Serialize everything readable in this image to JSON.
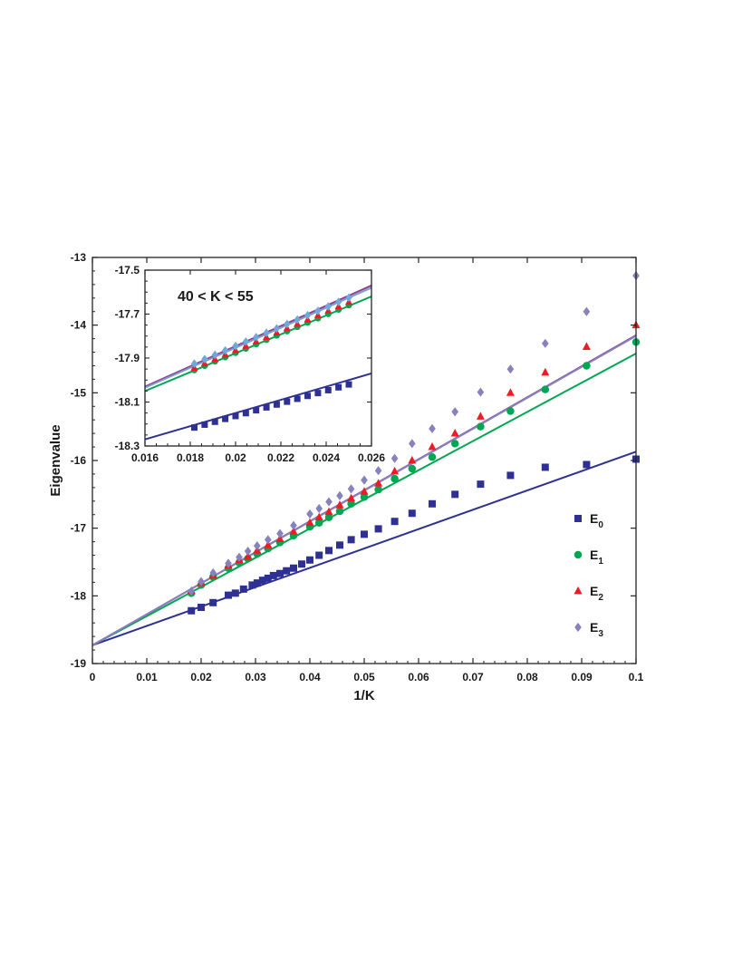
{
  "chart_data": [
    {
      "type": "scatter",
      "title": "",
      "xlabel": "1/K",
      "ylabel": "Eigenvalue",
      "xlim": [
        0,
        0.1
      ],
      "ylim": [
        -19,
        -13
      ],
      "xticks": [
        0,
        0.01,
        0.02,
        0.03,
        0.04,
        0.05,
        0.06,
        0.07,
        0.08,
        0.09,
        0.1
      ],
      "xtick_labels": [
        "0",
        "0.01",
        "0.02",
        "0.03",
        "0.04",
        "0.05",
        "0.06",
        "0.07",
        "0.08",
        "0.09",
        "0.1"
      ],
      "yticks": [
        -19,
        -18,
        -17,
        -16,
        -15,
        -14,
        -13
      ],
      "ytick_labels": [
        "-19",
        "-18",
        "-17",
        "-16",
        "-15",
        "-14",
        "-13"
      ],
      "grid": false,
      "legend_position": "bottom-right",
      "series": [
        {
          "name": "E",
          "sub": "0",
          "color": "#2e3192",
          "marker": "square",
          "x": [
            0.0182,
            0.02,
            0.0222,
            0.025,
            0.0263,
            0.0278,
            0.0294,
            0.0303,
            0.0313,
            0.0323,
            0.0333,
            0.0345,
            0.0357,
            0.037,
            0.0385,
            0.04,
            0.0417,
            0.0435,
            0.0455,
            0.0476,
            0.05,
            0.0526,
            0.0556,
            0.0588,
            0.0625,
            0.0667,
            0.0714,
            0.0769,
            0.0833,
            0.0909,
            0.1
          ],
          "y": [
            -18.22,
            -18.17,
            -18.1,
            -17.99,
            -17.96,
            -17.9,
            -17.84,
            -17.81,
            -17.77,
            -17.74,
            -17.7,
            -17.67,
            -17.63,
            -17.59,
            -17.53,
            -17.47,
            -17.4,
            -17.33,
            -17.25,
            -17.17,
            -17.09,
            -17.01,
            -16.9,
            -16.78,
            -16.64,
            -16.5,
            -16.35,
            -16.22,
            -16.1,
            -16.06,
            -15.98
          ]
        },
        {
          "name": "E",
          "sub": "1",
          "color": "#00a651",
          "marker": "circle",
          "x": [
            0.0182,
            0.02,
            0.0222,
            0.025,
            0.027,
            0.0286,
            0.0303,
            0.0323,
            0.0345,
            0.037,
            0.04,
            0.0417,
            0.0435,
            0.0455,
            0.0476,
            0.05,
            0.0526,
            0.0556,
            0.0588,
            0.0625,
            0.0667,
            0.0714,
            0.0769,
            0.0833,
            0.0909,
            0.1
          ],
          "y": [
            -17.96,
            -17.84,
            -17.72,
            -17.59,
            -17.51,
            -17.45,
            -17.38,
            -17.3,
            -17.21,
            -17.11,
            -16.98,
            -16.92,
            -16.84,
            -16.75,
            -16.64,
            -16.54,
            -16.43,
            -16.27,
            -16.12,
            -15.95,
            -15.75,
            -15.5,
            -15.27,
            -14.95,
            -14.6,
            -14.25
          ]
        },
        {
          "name": "E",
          "sub": "2",
          "color": "#ed1c24",
          "marker": "triangle",
          "x": [
            0.0182,
            0.02,
            0.0222,
            0.025,
            0.027,
            0.0286,
            0.0303,
            0.0323,
            0.0345,
            0.037,
            0.04,
            0.0417,
            0.0435,
            0.0455,
            0.0476,
            0.05,
            0.0526,
            0.0556,
            0.0588,
            0.0625,
            0.0667,
            0.0714,
            0.0769,
            0.0833,
            0.0909,
            0.1
          ],
          "y": [
            -17.93,
            -17.81,
            -17.7,
            -17.55,
            -17.47,
            -17.42,
            -17.33,
            -17.25,
            -17.16,
            -17.05,
            -16.92,
            -16.84,
            -16.76,
            -16.66,
            -16.56,
            -16.46,
            -16.34,
            -16.16,
            -16.0,
            -15.8,
            -15.6,
            -15.35,
            -15.0,
            -14.7,
            -14.32,
            -14.0
          ]
        },
        {
          "name": "E",
          "sub": "3",
          "color": "#8781bd",
          "marker": "diamond",
          "x": [
            0.0182,
            0.02,
            0.0222,
            0.025,
            0.027,
            0.0286,
            0.0303,
            0.0323,
            0.0345,
            0.037,
            0.04,
            0.0417,
            0.0435,
            0.0455,
            0.0476,
            0.05,
            0.0526,
            0.0556,
            0.0588,
            0.0625,
            0.0667,
            0.0714,
            0.0769,
            0.0833,
            0.0909,
            0.1
          ],
          "y": [
            -17.93,
            -17.79,
            -17.66,
            -17.52,
            -17.43,
            -17.34,
            -17.26,
            -17.17,
            -17.08,
            -16.96,
            -16.79,
            -16.71,
            -16.61,
            -16.52,
            -16.42,
            -16.29,
            -16.15,
            -15.97,
            -15.75,
            -15.53,
            -15.28,
            -14.99,
            -14.65,
            -14.27,
            -13.8,
            -13.27
          ]
        }
      ],
      "fit_lines": [
        {
          "color": "#2e3192",
          "x": [
            0,
            0.1
          ],
          "y": [
            -18.73,
            -15.87
          ]
        },
        {
          "color": "#00a651",
          "x": [
            0,
            0.1
          ],
          "y": [
            -18.73,
            -14.42
          ]
        },
        {
          "color": "#8e3f8e",
          "x": [
            0,
            0.1
          ],
          "y": [
            -18.73,
            -14.15
          ]
        },
        {
          "color": "#8781bd",
          "x": [
            0,
            0.1
          ],
          "y": [
            -18.73,
            -14.16
          ]
        }
      ]
    },
    {
      "type": "scatter",
      "title": "40 < K < 55",
      "xlim": [
        0.016,
        0.026
      ],
      "ylim": [
        -18.3,
        -17.5
      ],
      "xticks": [
        0.016,
        0.018,
        0.02,
        0.022,
        0.024,
        0.026
      ],
      "xtick_labels": [
        "0.016",
        "0.018",
        "0.02",
        "0.022",
        "0.024",
        "0.026"
      ],
      "yticks": [
        -18.3,
        -18.1,
        -17.9,
        -17.7,
        -17.5
      ],
      "ytick_labels": [
        "-18.3",
        "-18.1",
        "-17.9",
        "-17.7",
        "-17.5"
      ],
      "series": [
        {
          "color": "#2e3192",
          "marker": "square",
          "x_start": 0.01818,
          "x_end": 0.025,
          "count": 16,
          "y_start": -18.216,
          "y_end": -18.02
        },
        {
          "color": "#00a651",
          "marker": "circle",
          "x_start": 0.01818,
          "x_end": 0.025,
          "count": 16,
          "y_start": -17.955,
          "y_end": -17.66
        },
        {
          "color": "#ed1c24",
          "marker": "triangle",
          "x_start": 0.01818,
          "x_end": 0.025,
          "count": 16,
          "y_start": -17.945,
          "y_end": -17.645
        },
        {
          "color": "#6fa8dc",
          "marker": "diamond",
          "x_start": 0.01818,
          "x_end": 0.025,
          "count": 16,
          "y_start": -17.925,
          "y_end": -17.625
        }
      ],
      "fit_lines": [
        {
          "color": "#2e3192",
          "x": [
            0.016,
            0.026
          ],
          "y": [
            -18.27,
            -17.97
          ]
        },
        {
          "color": "#00a651",
          "x": [
            0.016,
            0.026
          ],
          "y": [
            -18.05,
            -17.62
          ]
        },
        {
          "color": "#8e3f8e",
          "x": [
            0.016,
            0.026
          ],
          "y": [
            -18.03,
            -17.57
          ]
        },
        {
          "color": "#7b9ed0",
          "x": [
            0.016,
            0.026
          ],
          "y": [
            -18.035,
            -17.58
          ]
        }
      ]
    }
  ]
}
